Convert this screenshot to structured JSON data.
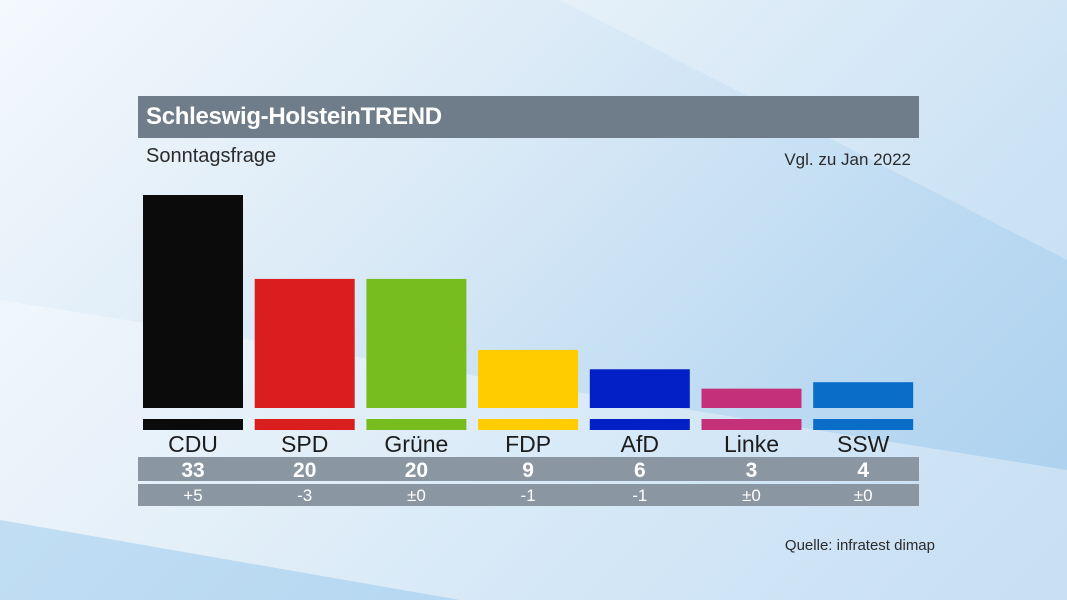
{
  "header": {
    "title": "Schleswig-HolsteinTREND",
    "subtitle": "Sonntagsfrage",
    "comparison": "Vgl. zu Jan 2022"
  },
  "footer": {
    "source": "Quelle: infratest dimap"
  },
  "chart_data": {
    "type": "bar",
    "categories": [
      "CDU",
      "SPD",
      "Grüne",
      "FDP",
      "AfD",
      "Linke",
      "SSW"
    ],
    "values": [
      33,
      20,
      20,
      9,
      6,
      3,
      4
    ],
    "value_labels": [
      "33",
      "20",
      "20",
      "9",
      "6",
      "3",
      "4"
    ],
    "changes": [
      "+5",
      "-3",
      "±0",
      "-1",
      "-1",
      "±0",
      "±0"
    ],
    "colors": [
      "#0b0b0b",
      "#da1e1e",
      "#78bd1e",
      "#ffcc00",
      "#0220c6",
      "#c4317a",
      "#0a6ec8"
    ],
    "title": "Schleswig-HolsteinTREND",
    "subtitle": "Sonntagsfrage",
    "ylim": [
      0,
      33
    ],
    "grid": false,
    "legend": "none"
  }
}
